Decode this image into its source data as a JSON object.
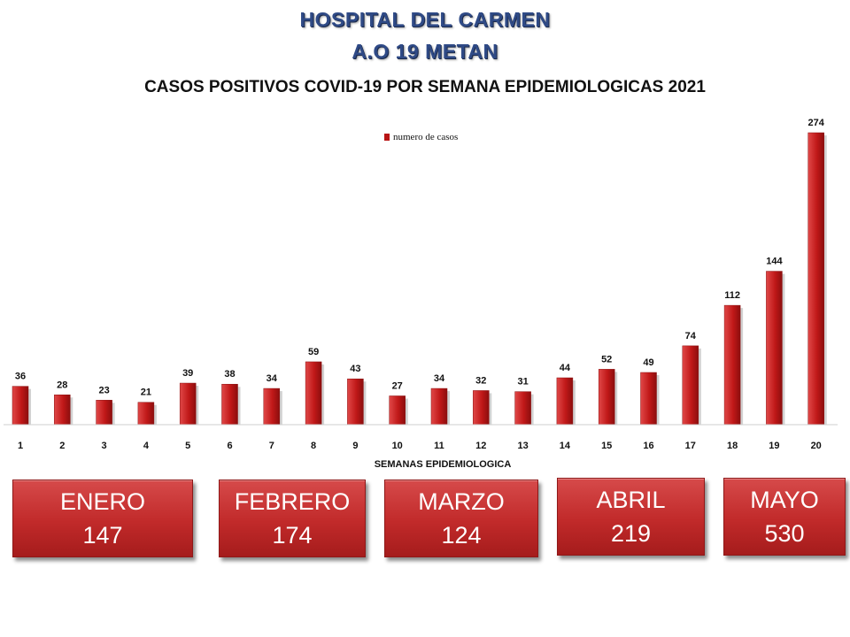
{
  "header": {
    "line1": "HOSPITAL DEL CARMEN",
    "line2": "A.O 19 METAN"
  },
  "chart_data": {
    "type": "bar",
    "title": "CASOS POSITIVOS COVID-19 POR SEMANA EPIDEMIOLOGICAS 2021",
    "xlabel": "SEMANAS EPIDEMIOLOGICA",
    "ylabel": "",
    "categories": [
      "1",
      "2",
      "3",
      "4",
      "5",
      "6",
      "7",
      "8",
      "9",
      "10",
      "11",
      "12",
      "13",
      "14",
      "15",
      "16",
      "17",
      "18",
      "19",
      "20"
    ],
    "series": [
      {
        "name": "numero de casos",
        "values": [
          36,
          28,
          23,
          21,
          39,
          38,
          34,
          59,
          43,
          27,
          34,
          32,
          31,
          44,
          52,
          49,
          74,
          112,
          144,
          274
        ]
      }
    ],
    "ylim": [
      0,
      274
    ],
    "grid": false,
    "legend": "top-center",
    "bar_color": "#b81414",
    "data_labels": true
  },
  "months": [
    {
      "name": "ENERO",
      "total": "147"
    },
    {
      "name": "FEBRERO",
      "total": "174"
    },
    {
      "name": "MARZO",
      "total": "124"
    },
    {
      "name": "ABRIL",
      "total": "219"
    },
    {
      "name": "MAYO",
      "total": "530"
    }
  ]
}
